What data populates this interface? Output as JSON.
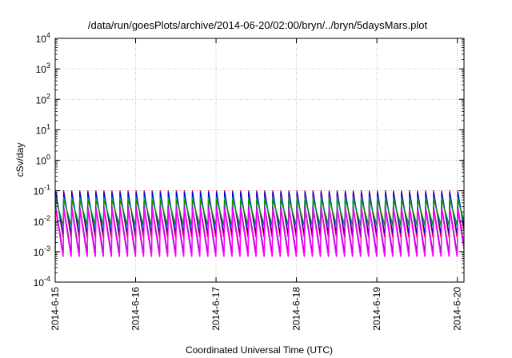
{
  "chart_data": {
    "type": "line",
    "title": "/data/run/goesPlots/archive/2014-06-20/02:00/bryn/../bryn/5daysMars.plot",
    "xlabel": "Coordinated Universal Time (UTC)",
    "ylabel": "cSv/day",
    "yscale": "log",
    "ylim": [
      0.0001,
      10000
    ],
    "yticks": [
      {
        "value": 0.0001,
        "base": "10",
        "exp": "-4"
      },
      {
        "value": 0.001,
        "base": "10",
        "exp": "-3"
      },
      {
        "value": 0.01,
        "base": "10",
        "exp": "-2"
      },
      {
        "value": 0.1,
        "base": "10",
        "exp": "-1"
      },
      {
        "value": 1,
        "base": "10",
        "exp": "0"
      },
      {
        "value": 10,
        "base": "10",
        "exp": "1"
      },
      {
        "value": 100,
        "base": "10",
        "exp": "2"
      },
      {
        "value": 1000,
        "base": "10",
        "exp": "3"
      },
      {
        "value": 10000,
        "base": "10",
        "exp": "4"
      }
    ],
    "xrange": [
      "2014-06-15 00:00",
      "2014-06-20 02:00"
    ],
    "xticks": [
      "2014-6-15",
      "2014-6-16",
      "2014-6-17",
      "2014-6-18",
      "2014-6-19",
      "2014-6-20"
    ],
    "grid": true,
    "legend": "none",
    "cycle_hours": 2.4,
    "series": [
      {
        "color": "#ff0000",
        "peak": 0.1,
        "trough": 0.003
      },
      {
        "color": "#0000cc",
        "peak": 0.09,
        "trough": 0.004
      },
      {
        "color": "#00aaaa",
        "peak": 0.06,
        "trough": 0.007
      },
      {
        "color": "#009900",
        "peak": 0.05,
        "trough": 0.008
      },
      {
        "color": "#8800cc",
        "peak": 0.03,
        "trough": 0.001
      },
      {
        "color": "#ff00ff",
        "peak": 0.025,
        "trough": 0.0007
      }
    ]
  }
}
